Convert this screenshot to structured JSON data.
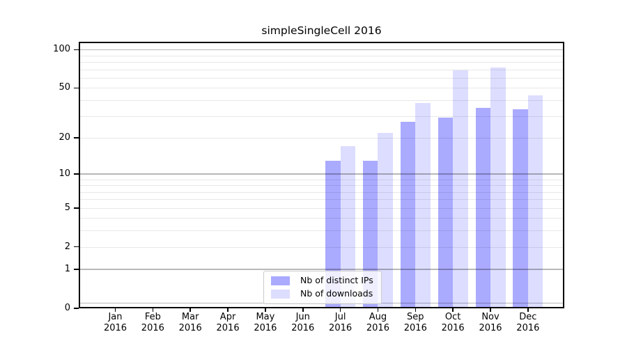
{
  "title": "simpleSingleCell 2016",
  "legend": {
    "items": [
      {
        "label": "Nb of distinct IPs",
        "color": "#aaaaff"
      },
      {
        "label": "Nb of downloads",
        "color": "#ddddff"
      }
    ]
  },
  "axes": {
    "y_ticks": [
      {
        "label": "100",
        "value": 100
      },
      {
        "label": "50",
        "value": 50
      },
      {
        "label": "20",
        "value": 20
      },
      {
        "label": "10",
        "value": 10
      },
      {
        "label": "5",
        "value": 5
      },
      {
        "label": "2",
        "value": 2
      },
      {
        "label": "1",
        "value": 1
      },
      {
        "label": "0",
        "value": 0
      }
    ],
    "y_grid_major": [
      0.1,
      1,
      10,
      100
    ],
    "y_grid_minor": [
      2,
      3,
      4,
      5,
      6,
      7,
      8,
      9,
      20,
      30,
      40,
      50,
      60,
      70,
      80,
      90
    ],
    "x_ticks": [
      {
        "month": "Jan",
        "year": "2016"
      },
      {
        "month": "Feb",
        "year": "2016"
      },
      {
        "month": "Mar",
        "year": "2016"
      },
      {
        "month": "Apr",
        "year": "2016"
      },
      {
        "month": "May",
        "year": "2016"
      },
      {
        "month": "Jun",
        "year": "2016"
      },
      {
        "month": "Jul",
        "year": "2016"
      },
      {
        "month": "Aug",
        "year": "2016"
      },
      {
        "month": "Sep",
        "year": "2016"
      },
      {
        "month": "Oct",
        "year": "2016"
      },
      {
        "month": "Nov",
        "year": "2016"
      },
      {
        "month": "Dec",
        "year": "2016"
      }
    ]
  },
  "chart_data": {
    "type": "bar",
    "title": "simpleSingleCell 2016",
    "categories": [
      "Jan 2016",
      "Feb 2016",
      "Mar 2016",
      "Apr 2016",
      "May 2016",
      "Jun 2016",
      "Jul 2016",
      "Aug 2016",
      "Sep 2016",
      "Oct 2016",
      "Nov 2016",
      "Dec 2016"
    ],
    "series": [
      {
        "name": "Nb of distinct IPs",
        "color": "#aaaaff",
        "values": [
          0,
          0,
          0,
          0,
          0,
          0,
          13,
          13,
          27,
          29,
          35,
          34
        ]
      },
      {
        "name": "Nb of downloads",
        "color": "#ddddff",
        "values": [
          0,
          0,
          0,
          0,
          0,
          0,
          17,
          22,
          38,
          69,
          73,
          44
        ]
      }
    ],
    "xlabel": "",
    "ylabel": "",
    "yscale": "log1p",
    "ylim": [
      0,
      115
    ],
    "y_tick_values": [
      0,
      1,
      2,
      5,
      10,
      20,
      50,
      100
    ],
    "grid": true,
    "legend_position": "lower center inside plot"
  }
}
